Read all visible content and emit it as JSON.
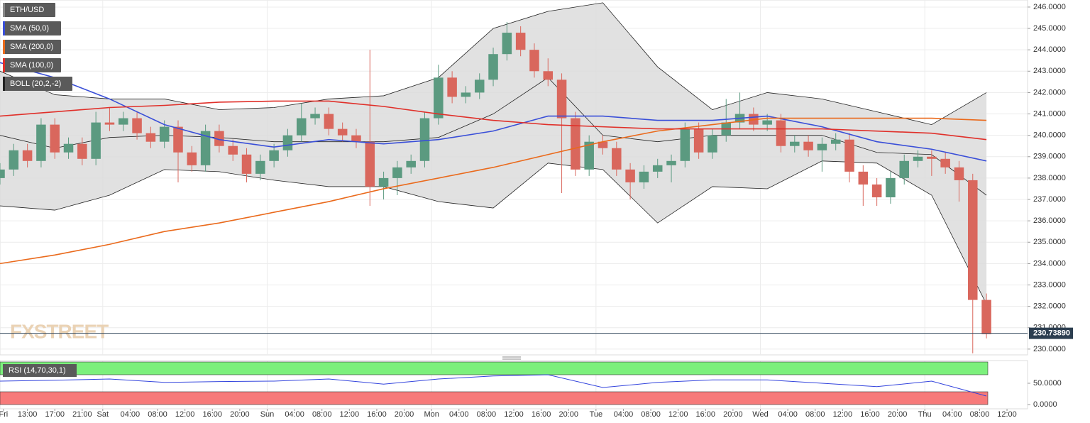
{
  "chart_data": {
    "type": "candlestick",
    "legend": [
      "ETH/USD",
      "SMA (50,0)",
      "SMA (200,0)",
      "SMA (100,0)",
      "BOLL (20,2,-2)"
    ],
    "watermark": "FXSTREET",
    "colors": {
      "up": "#5b9a80",
      "down": "#d9675d",
      "band": "#dcdcdc"
    },
    "xlim": [
      9,
      159
    ],
    "ylim": [
      229.73,
      246.33
    ],
    "grid": true,
    "xticks": [
      {
        "value": 9.5,
        "label": "Fri"
      },
      {
        "value": 13,
        "label": "13:00"
      },
      {
        "value": 17,
        "label": "17:00"
      },
      {
        "value": 21,
        "label": "21:00"
      },
      {
        "value": 24,
        "label": "Sat"
      },
      {
        "value": 28,
        "label": "04:00"
      },
      {
        "value": 32,
        "label": "08:00"
      },
      {
        "value": 36,
        "label": "12:00"
      },
      {
        "value": 40,
        "label": "16:00"
      },
      {
        "value": 44,
        "label": "20:00"
      },
      {
        "value": 48,
        "label": "Sun"
      },
      {
        "value": 52,
        "label": "04:00"
      },
      {
        "value": 56,
        "label": "08:00"
      },
      {
        "value": 60,
        "label": "12:00"
      },
      {
        "value": 64,
        "label": "16:00"
      },
      {
        "value": 68,
        "label": "20:00"
      },
      {
        "value": 72,
        "label": "Mon"
      },
      {
        "value": 76,
        "label": "04:00"
      },
      {
        "value": 80,
        "label": "08:00"
      },
      {
        "value": 84,
        "label": "12:00"
      },
      {
        "value": 88,
        "label": "16:00"
      },
      {
        "value": 92,
        "label": "20:00"
      },
      {
        "value": 96,
        "label": "Tue"
      },
      {
        "value": 100,
        "label": "04:00"
      },
      {
        "value": 104,
        "label": "08:00"
      },
      {
        "value": 108,
        "label": "12:00"
      },
      {
        "value": 112,
        "label": "16:00"
      },
      {
        "value": 116,
        "label": "20:00"
      },
      {
        "value": 120,
        "label": "Wed"
      },
      {
        "value": 124,
        "label": "04:00"
      },
      {
        "value": 128,
        "label": "08:00"
      },
      {
        "value": 132,
        "label": "12:00"
      },
      {
        "value": 136,
        "label": "16:00"
      },
      {
        "value": 140,
        "label": "20:00"
      },
      {
        "value": 144,
        "label": "Thu"
      },
      {
        "value": 148,
        "label": "04:00"
      },
      {
        "value": 152,
        "label": "08:00"
      },
      {
        "value": 156,
        "label": "12:00"
      }
    ],
    "day_lines": [
      24,
      48,
      72,
      96,
      120,
      144
    ],
    "yticks": [
      {
        "value": 230,
        "label": "230.0000"
      },
      {
        "value": 231,
        "label": "231.0000"
      },
      {
        "value": 232,
        "label": "232.0000"
      },
      {
        "value": 233,
        "label": "233.0000"
      },
      {
        "value": 234,
        "label": "234.0000"
      },
      {
        "value": 235,
        "label": "235.0000"
      },
      {
        "value": 236,
        "label": "236.0000"
      },
      {
        "value": 237,
        "label": "237.0000"
      },
      {
        "value": 238,
        "label": "238.0000"
      },
      {
        "value": 239,
        "label": "239.0000"
      },
      {
        "value": 240,
        "label": "240.0000"
      },
      {
        "value": 241,
        "label": "241.0000"
      },
      {
        "value": 242,
        "label": "242.0000"
      },
      {
        "value": 243,
        "label": "243.0000"
      },
      {
        "value": 244,
        "label": "244.0000"
      },
      {
        "value": 245,
        "label": "245.0000"
      },
      {
        "value": 246,
        "label": "246.0000"
      }
    ],
    "last_price": 230.7389,
    "last_price_label": "230.73890",
    "x": [
      9,
      11,
      13,
      15,
      17,
      19,
      21,
      23,
      25,
      27,
      29,
      31,
      33,
      35,
      37,
      39,
      41,
      43,
      45,
      47,
      49,
      51,
      53,
      55,
      57,
      59,
      61,
      63,
      65,
      67,
      69,
      71,
      73,
      75,
      77,
      79,
      81,
      83,
      85,
      87,
      89,
      91,
      93,
      95,
      97,
      99,
      101,
      103,
      105,
      107,
      109,
      111,
      113,
      115,
      117,
      119,
      121,
      123,
      125,
      127,
      129,
      131,
      133,
      135,
      137,
      139,
      141,
      143,
      145,
      147,
      149,
      151,
      153
    ],
    "open": [
      238.0,
      238.4,
      239.3,
      238.8,
      240.5,
      239.2,
      239.6,
      238.9,
      240.6,
      240.5,
      240.8,
      240.1,
      239.7,
      240.4,
      239.2,
      238.6,
      240.2,
      239.5,
      239.1,
      238.2,
      238.8,
      239.3,
      240.0,
      240.8,
      241.0,
      240.3,
      240.0,
      239.7,
      237.6,
      238.0,
      238.5,
      238.8,
      240.8,
      242.7,
      241.8,
      242.0,
      242.6,
      243.8,
      244.8,
      244.0,
      243.0,
      242.6,
      240.8,
      238.4,
      239.7,
      239.4,
      238.4,
      237.8,
      238.3,
      238.6,
      238.8,
      240.3,
      239.2,
      240.0,
      240.6,
      241.0,
      240.5,
      240.7,
      239.5,
      239.7,
      239.3,
      239.6,
      239.8,
      238.3,
      237.7,
      237.1,
      238.0,
      238.8,
      239.0,
      238.9,
      238.5,
      237.9,
      232.3
    ],
    "high": [
      238.7,
      239.6,
      239.6,
      240.8,
      240.8,
      239.9,
      239.9,
      241.1,
      241.3,
      241.1,
      241.1,
      240.4,
      240.7,
      240.7,
      239.5,
      240.5,
      240.5,
      239.8,
      239.4,
      239.1,
      239.6,
      240.3,
      241.5,
      241.3,
      241.3,
      240.6,
      240.3,
      244.0,
      238.3,
      238.8,
      239.1,
      241.1,
      243.3,
      243.0,
      242.3,
      242.9,
      244.1,
      245.3,
      245.1,
      244.3,
      243.6,
      242.9,
      241.1,
      240.0,
      240.0,
      239.7,
      238.7,
      238.6,
      238.9,
      239.1,
      240.6,
      240.6,
      240.3,
      241.7,
      242.0,
      241.3,
      241.0,
      241.0,
      240.0,
      240.0,
      239.9,
      240.1,
      240.1,
      238.6,
      238.0,
      238.3,
      239.1,
      239.3,
      239.3,
      239.2,
      238.8,
      238.2,
      232.6
    ],
    "low": [
      237.7,
      238.1,
      238.5,
      238.5,
      238.9,
      238.9,
      238.6,
      238.6,
      240.2,
      240.2,
      239.8,
      239.4,
      239.4,
      237.8,
      238.3,
      238.3,
      239.2,
      238.8,
      237.8,
      237.9,
      238.5,
      239.0,
      239.7,
      240.5,
      240.0,
      239.7,
      239.4,
      236.7,
      237.0,
      237.2,
      238.2,
      238.5,
      240.5,
      241.5,
      241.5,
      241.7,
      242.3,
      243.5,
      243.7,
      242.7,
      242.3,
      237.3,
      238.1,
      238.1,
      239.1,
      238.1,
      237.0,
      237.5,
      238.0,
      237.8,
      238.5,
      238.9,
      238.9,
      239.7,
      240.3,
      240.2,
      240.2,
      239.2,
      239.2,
      239.0,
      238.3,
      239.3,
      237.8,
      236.7,
      236.7,
      236.8,
      237.7,
      238.5,
      238.1,
      238.2,
      236.9,
      229.8,
      230.5
    ],
    "close": [
      238.4,
      239.3,
      238.8,
      240.5,
      239.2,
      239.6,
      238.9,
      240.6,
      240.5,
      240.8,
      240.1,
      239.7,
      240.4,
      239.2,
      238.6,
      240.2,
      239.5,
      239.1,
      238.2,
      238.8,
      239.3,
      240.0,
      240.8,
      241.0,
      240.3,
      240.0,
      239.7,
      237.6,
      238.0,
      238.5,
      238.8,
      240.8,
      242.7,
      241.8,
      242.0,
      242.6,
      243.8,
      244.8,
      244.0,
      243.0,
      242.6,
      240.8,
      238.4,
      239.7,
      239.4,
      238.4,
      237.8,
      238.3,
      238.6,
      238.8,
      240.3,
      239.2,
      240.0,
      240.6,
      241.0,
      240.5,
      240.7,
      239.5,
      239.7,
      239.3,
      239.6,
      239.8,
      238.3,
      237.7,
      237.1,
      238.0,
      238.8,
      239.0,
      238.9,
      238.5,
      237.9,
      232.3,
      230.7
    ],
    "line_x": [
      9,
      17,
      25,
      33,
      41,
      49,
      57,
      65,
      73,
      81,
      89,
      97,
      105,
      113,
      121,
      129,
      137,
      145,
      153
    ],
    "lines": [
      {
        "name": "SMA (50,0)",
        "color": "#3a4fd8",
        "values": [
          243.4,
          242.7,
          241.7,
          240.5,
          239.8,
          239.45,
          239.8,
          239.6,
          239.8,
          240.2,
          240.9,
          240.9,
          240.7,
          240.7,
          240.9,
          240.4,
          239.7,
          239.35,
          238.8
        ]
      },
      {
        "name": "SMA (200,0)",
        "color": "#ea6a1c",
        "values": [
          234.0,
          234.4,
          234.9,
          235.5,
          235.9,
          236.4,
          236.9,
          237.5,
          238.0,
          238.5,
          239.1,
          239.7,
          240.2,
          240.5,
          240.8,
          240.8,
          240.8,
          240.8,
          240.7
        ]
      },
      {
        "name": "SMA (100,0)",
        "color": "#e0302a",
        "values": [
          240.9,
          241.1,
          241.3,
          241.4,
          241.55,
          241.6,
          241.6,
          241.35,
          241.0,
          240.7,
          240.5,
          240.4,
          240.3,
          240.3,
          240.3,
          240.3,
          240.2,
          240.1,
          239.8
        ]
      }
    ],
    "boll": {
      "upper": [
        243.0,
        241.9,
        241.7,
        241.7,
        241.2,
        241.3,
        241.7,
        241.85,
        242.7,
        245.0,
        245.8,
        246.2,
        243.2,
        241.2,
        242.0,
        241.7,
        241.1,
        240.5,
        242.0
      ],
      "middle": [
        240.0,
        239.4,
        239.9,
        240.0,
        239.9,
        239.7,
        239.7,
        239.7,
        239.9,
        241.0,
        242.7,
        240.0,
        239.7,
        240.0,
        240.0,
        240.0,
        239.2,
        239.1,
        237.2
      ],
      "lower": [
        236.7,
        236.5,
        237.2,
        238.4,
        238.3,
        237.9,
        237.6,
        237.6,
        236.9,
        236.6,
        238.7,
        238.4,
        235.9,
        237.6,
        237.5,
        238.8,
        238.7,
        237.2,
        232.1
      ]
    },
    "rsi": {
      "label": "RSI (14,70,30,1)",
      "overbought": 70,
      "oversold": 30,
      "ylim": [
        0,
        100
      ],
      "yticks": [
        {
          "value": 0,
          "label": "0.0000"
        },
        {
          "value": 50,
          "label": "50.0000"
        }
      ],
      "color": "#3344dd",
      "values": [
        55,
        57,
        60,
        52,
        54,
        55,
        60,
        48,
        60,
        67,
        70,
        40,
        52,
        58,
        58,
        50,
        42,
        55,
        20
      ]
    }
  }
}
